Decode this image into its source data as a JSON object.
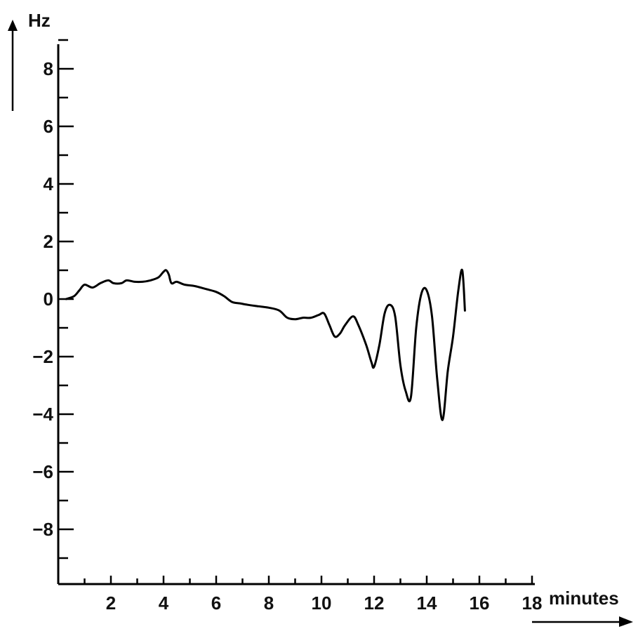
{
  "chart_data": {
    "type": "line",
    "title": "",
    "xlabel": "minutes",
    "ylabel": "Hz",
    "xlim": [
      0,
      18
    ],
    "ylim": [
      -9,
      9
    ],
    "x_ticks": [
      2,
      4,
      6,
      8,
      10,
      12,
      14,
      16,
      18
    ],
    "y_ticks": [
      8,
      6,
      4,
      2,
      0,
      -2,
      -4,
      -6,
      -8
    ],
    "x_tick_labels": [
      "2",
      "4",
      "6",
      "8",
      "10",
      "12",
      "14",
      "16",
      "18"
    ],
    "y_tick_labels": [
      "8",
      "6",
      "4",
      "2",
      "0",
      "−2",
      "−4",
      "−6",
      "−8"
    ],
    "grid": false,
    "series": [
      {
        "x": [
          0.3,
          0.6,
          0.8,
          1.0,
          1.3,
          1.6,
          1.9,
          2.1,
          2.4,
          2.6,
          2.9,
          3.2,
          3.5,
          3.8,
          4.0,
          4.1,
          4.2,
          4.3,
          4.5,
          4.8,
          5.2,
          5.6,
          6.0,
          6.3,
          6.6,
          6.9,
          7.2,
          7.6,
          8.0,
          8.4,
          8.7,
          9.0,
          9.3,
          9.6,
          9.9,
          10.1,
          10.3,
          10.5,
          10.7,
          10.9,
          11.2,
          11.4,
          11.7,
          11.9,
          12.0,
          12.2,
          12.4,
          12.6,
          12.8,
          13.0,
          13.2,
          13.4,
          13.6,
          13.8,
          14.0,
          14.2,
          14.4,
          14.6,
          14.8,
          15.0,
          15.2,
          15.35,
          15.45
        ],
        "y": [
          0.0,
          0.1,
          0.3,
          0.5,
          0.4,
          0.55,
          0.65,
          0.55,
          0.55,
          0.65,
          0.6,
          0.6,
          0.65,
          0.75,
          0.95,
          1.0,
          0.85,
          0.55,
          0.6,
          0.5,
          0.45,
          0.35,
          0.25,
          0.1,
          -0.1,
          -0.15,
          -0.2,
          -0.25,
          -0.3,
          -0.4,
          -0.65,
          -0.7,
          -0.65,
          -0.65,
          -0.55,
          -0.5,
          -0.9,
          -1.3,
          -1.2,
          -0.9,
          -0.6,
          -0.9,
          -1.6,
          -2.2,
          -2.35,
          -1.6,
          -0.5,
          -0.2,
          -0.6,
          -2.3,
          -3.2,
          -3.4,
          -1.0,
          0.2,
          0.3,
          -0.6,
          -2.8,
          -4.2,
          -2.5,
          -1.3,
          0.3,
          1.0,
          -0.4
        ]
      }
    ]
  }
}
